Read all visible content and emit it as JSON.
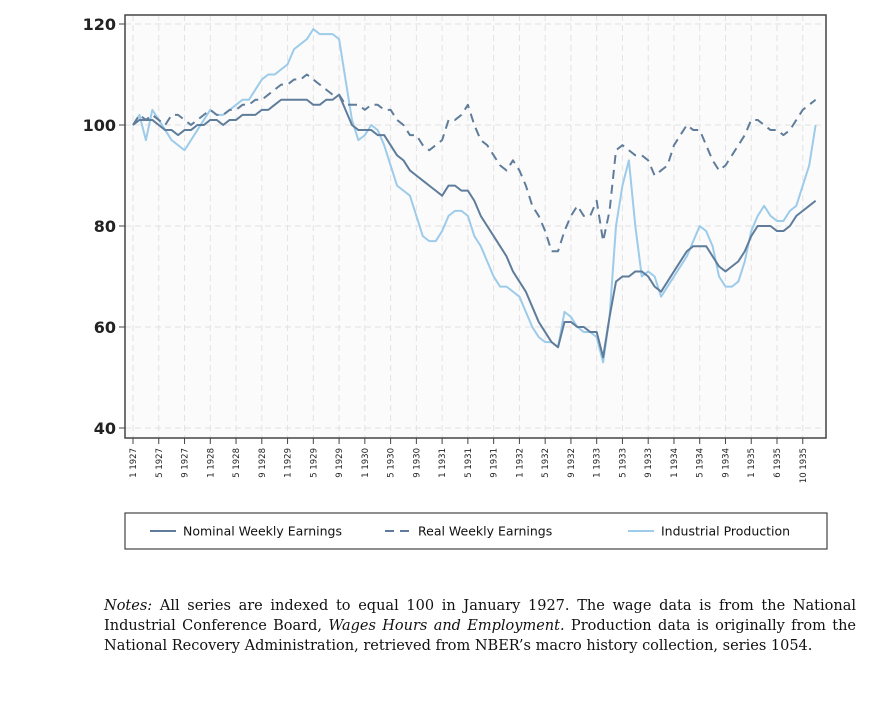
{
  "chart_data": {
    "type": "line",
    "categories": [
      "1 1927",
      null,
      null,
      null,
      "5 1927",
      null,
      null,
      null,
      "9 1927",
      null,
      null,
      null,
      "1 1928",
      null,
      null,
      null,
      "5 1928",
      null,
      null,
      null,
      "9 1928",
      null,
      null,
      null,
      "1 1929",
      null,
      null,
      null,
      "5 1929",
      null,
      null,
      null,
      "9 1929",
      null,
      null,
      null,
      "1 1930",
      null,
      null,
      null,
      "5 1930",
      null,
      null,
      null,
      "9 1930",
      null,
      null,
      null,
      "1 1931",
      null,
      null,
      null,
      "5 1931",
      null,
      null,
      null,
      "9 1931",
      null,
      null,
      null,
      "1 1932",
      null,
      null,
      null,
      "5 1932",
      null,
      null,
      null,
      "9 1932",
      null,
      null,
      null,
      "1 1933",
      null,
      null,
      null,
      "5 1933",
      null,
      null,
      null,
      "9 1933",
      null,
      null,
      null,
      "1 1934",
      null,
      null,
      null,
      "5 1934",
      null,
      null,
      null,
      "9 1934",
      null,
      null,
      null,
      "1 1935",
      null,
      null,
      null,
      "6 1935",
      null,
      null,
      null,
      "10 1935",
      null,
      null
    ],
    "series": [
      {
        "name": "Nominal Weekly Earnings",
        "color": "#5f7d9b",
        "style": "solid",
        "values": [
          100,
          101,
          101,
          101,
          100,
          99,
          99,
          98,
          99,
          99,
          100,
          100,
          101,
          101,
          100,
          101,
          101,
          102,
          102,
          102,
          103,
          103,
          104,
          105,
          105,
          105,
          105,
          105,
          104,
          104,
          105,
          105,
          106,
          103,
          100,
          99,
          99,
          99,
          98,
          98,
          96,
          94,
          93,
          91,
          90,
          89,
          88,
          87,
          86,
          88,
          88,
          87,
          87,
          85,
          82,
          80,
          78,
          76,
          74,
          71,
          69,
          67,
          64,
          61,
          59,
          57,
          56,
          61,
          61,
          60,
          60,
          59,
          59,
          54,
          62,
          69,
          70,
          70,
          71,
          71,
          70,
          68,
          67,
          69,
          71,
          73,
          75,
          76,
          76,
          76,
          74,
          72,
          71,
          72,
          73,
          75,
          78,
          80,
          80,
          80,
          79,
          79,
          80,
          82,
          83,
          84,
          85
        ]
      },
      {
        "name": "Real Weekly Earnings",
        "color": "#5f7d9b",
        "style": "dashed",
        "values": [
          100,
          102,
          101,
          102,
          101,
          100,
          102,
          102,
          101,
          100,
          101,
          102,
          103,
          102,
          102,
          103,
          103,
          104,
          104,
          105,
          105,
          106,
          107,
          108,
          108,
          109,
          109,
          110,
          109,
          108,
          107,
          106,
          106,
          104,
          104,
          104,
          103,
          104,
          104,
          103,
          103,
          101,
          100,
          98,
          98,
          96,
          95,
          96,
          97,
          101,
          101,
          102,
          104,
          100,
          97,
          96,
          94,
          92,
          91,
          93,
          91,
          88,
          84,
          82,
          79,
          75,
          75,
          79,
          82,
          84,
          82,
          82,
          85,
          77,
          83,
          95,
          96,
          95,
          94,
          94,
          93,
          90,
          91,
          92,
          96,
          98,
          100,
          99,
          99,
          96,
          93,
          91,
          92,
          94,
          96,
          98,
          101,
          101,
          100,
          99,
          99,
          98,
          99,
          101,
          103,
          104,
          105
        ]
      },
      {
        "name": "Industrial Production",
        "color": "#9dcbea",
        "style": "solid",
        "values": [
          100,
          102,
          97,
          103,
          101,
          99,
          97,
          96,
          95,
          97,
          99,
          101,
          103,
          102,
          102,
          103,
          104,
          105,
          105,
          107,
          109,
          110,
          110,
          111,
          112,
          115,
          116,
          117,
          119,
          118,
          118,
          118,
          117,
          109,
          101,
          97,
          98,
          100,
          99,
          96,
          92,
          88,
          87,
          86,
          82,
          78,
          77,
          77,
          79,
          82,
          83,
          83,
          82,
          78,
          76,
          73,
          70,
          68,
          68,
          67,
          66,
          63,
          60,
          58,
          57,
          57,
          56,
          63,
          62,
          60,
          59,
          59,
          58,
          53,
          62,
          80,
          88,
          93,
          80,
          70,
          71,
          70,
          66,
          68,
          70,
          72,
          74,
          77,
          80,
          79,
          76,
          70,
          68,
          68,
          69,
          73,
          79,
          82,
          84,
          82,
          81,
          81,
          83,
          84,
          88,
          92,
          100
        ]
      }
    ],
    "ylim": [
      40,
      120
    ],
    "yticks": [
      40,
      60,
      80,
      100,
      120
    ],
    "grid": true,
    "legend": "bottom"
  },
  "notes": [
    "Notes:",
    " All series are indexed to equal 100 in January 1927. The wage data is from the National Industrial Conference Board, ",
    "Wages Hours and Employment.",
    " Production data is originally from the National Recovery Administration, retrieved from NBER’s macro history collection, series 1054."
  ]
}
